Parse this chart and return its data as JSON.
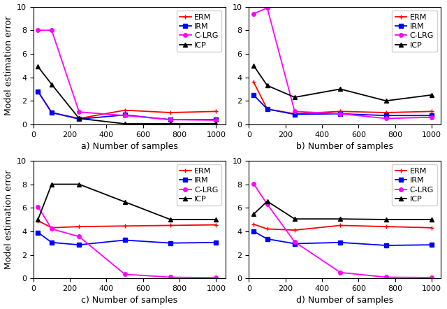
{
  "x": [
    25,
    100,
    250,
    500,
    750,
    1000
  ],
  "panels": [
    {
      "label": "a",
      "title": "a) Number of samples",
      "ylim": [
        0,
        10
      ],
      "yticks": [
        0,
        2,
        4,
        6,
        8,
        10
      ],
      "ERM": [
        2.8,
        1.0,
        0.5,
        1.2,
        1.0,
        1.1
      ],
      "IRM": [
        2.8,
        1.0,
        0.45,
        0.8,
        0.4,
        0.4
      ],
      "CLRG": [
        8.0,
        8.0,
        1.05,
        0.75,
        0.4,
        0.35
      ],
      "ICP": [
        4.9,
        3.4,
        0.5,
        0.05,
        0.05,
        0.05
      ]
    },
    {
      "label": "b",
      "title": "b) Number of samples",
      "ylim": [
        0,
        10
      ],
      "yticks": [
        0,
        2,
        4,
        6,
        8,
        10
      ],
      "ERM": [
        3.6,
        1.3,
        0.9,
        1.1,
        1.0,
        1.1
      ],
      "IRM": [
        2.5,
        1.3,
        0.85,
        0.9,
        0.75,
        0.75
      ],
      "CLRG": [
        9.4,
        9.9,
        1.1,
        0.9,
        0.5,
        0.6
      ],
      "ICP": [
        5.0,
        3.3,
        2.3,
        3.0,
        2.0,
        2.5
      ]
    },
    {
      "label": "c",
      "title": "c) Number of samples",
      "ylim": [
        0,
        10
      ],
      "yticks": [
        0,
        2,
        4,
        6,
        8,
        10
      ],
      "ERM": [
        4.9,
        4.3,
        4.4,
        4.45,
        4.5,
        4.55
      ],
      "IRM": [
        3.9,
        3.05,
        2.85,
        3.25,
        3.0,
        3.05
      ],
      "CLRG": [
        6.1,
        4.2,
        3.55,
        0.35,
        0.1,
        0.05
      ],
      "ICP": [
        5.0,
        8.0,
        8.0,
        6.5,
        5.0,
        5.0
      ]
    },
    {
      "label": "d",
      "title": "d) Number of samples",
      "ylim": [
        0,
        10
      ],
      "yticks": [
        0,
        2,
        4,
        6,
        8,
        10
      ],
      "ERM": [
        4.6,
        4.2,
        4.1,
        4.5,
        4.4,
        4.3
      ],
      "IRM": [
        4.0,
        3.35,
        2.95,
        3.05,
        2.8,
        2.85
      ],
      "CLRG": [
        8.05,
        6.3,
        3.1,
        0.5,
        0.1,
        0.07
      ],
      "ICP": [
        5.45,
        6.55,
        5.05,
        5.05,
        5.0,
        5.0
      ]
    }
  ],
  "colors": {
    "ERM": "red",
    "IRM": "blue",
    "CLRG": "magenta",
    "ICP": "black"
  },
  "markers": {
    "ERM": "+",
    "IRM": "s",
    "CLRG": "o",
    "ICP": "^"
  },
  "markersize": 4,
  "linewidth": 1.3,
  "ylabel": "Model estimation error",
  "legend_labels": [
    "ERM",
    "IRM",
    "C-LRG",
    "ICP"
  ],
  "legend_fontsize": 8,
  "tick_fontsize": 8,
  "label_fontsize": 9,
  "figsize": [
    6.4,
    4.42
  ],
  "dpi": 100
}
